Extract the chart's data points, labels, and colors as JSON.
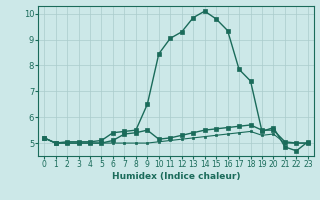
{
  "xlabel": "Humidex (Indice chaleur)",
  "bg_color": "#cce8e8",
  "grid_color": "#aacccc",
  "line_color": "#1a6b5a",
  "spine_color": "#1a6b5a",
  "xlim": [
    -0.5,
    23.5
  ],
  "ylim": [
    4.5,
    10.3
  ],
  "xticks": [
    0,
    1,
    2,
    3,
    4,
    5,
    6,
    7,
    8,
    9,
    10,
    11,
    12,
    13,
    14,
    15,
    16,
    17,
    18,
    19,
    20,
    21,
    22,
    23
  ],
  "yticks": [
    5,
    6,
    7,
    8,
    9,
    10
  ],
  "curve1_x": [
    0,
    1,
    2,
    3,
    4,
    5,
    6,
    7,
    8,
    9,
    10,
    11,
    12,
    13,
    14,
    15,
    16,
    17,
    18,
    19,
    20,
    21,
    22,
    23
  ],
  "curve1_y": [
    5.2,
    5.0,
    5.05,
    5.05,
    5.05,
    5.1,
    5.4,
    5.45,
    5.5,
    6.5,
    8.45,
    9.05,
    9.3,
    9.85,
    10.1,
    9.8,
    9.35,
    7.85,
    7.4,
    5.45,
    5.6,
    4.85,
    4.7,
    5.05
  ],
  "curve2_x": [
    0,
    1,
    2,
    3,
    4,
    5,
    6,
    7,
    8,
    9,
    10,
    11,
    12,
    13,
    14,
    15,
    16,
    17,
    18,
    19,
    20,
    21,
    22,
    23
  ],
  "curve2_y": [
    5.2,
    5.0,
    5.0,
    5.0,
    5.0,
    5.0,
    5.1,
    5.35,
    5.4,
    5.5,
    5.15,
    5.2,
    5.3,
    5.4,
    5.5,
    5.55,
    5.6,
    5.65,
    5.7,
    5.5,
    5.5,
    5.05,
    5.0,
    5.0
  ],
  "curve3_x": [
    0,
    1,
    2,
    3,
    4,
    5,
    6,
    7,
    8,
    9,
    10,
    11,
    12,
    13,
    14,
    15,
    16,
    17,
    18,
    19,
    20,
    21,
    22,
    23
  ],
  "curve3_y": [
    5.2,
    5.0,
    5.0,
    5.0,
    5.0,
    5.0,
    5.0,
    5.0,
    5.0,
    5.0,
    5.05,
    5.1,
    5.15,
    5.2,
    5.25,
    5.3,
    5.35,
    5.4,
    5.45,
    5.3,
    5.35,
    5.0,
    5.0,
    5.0
  ],
  "tick_fontsize_x": 5.5,
  "tick_fontsize_y": 6.0,
  "xlabel_fontsize": 6.5,
  "linewidth1": 1.0,
  "linewidth2": 1.0,
  "linewidth3": 0.8,
  "markersize1": 2.5,
  "markersize2": 2.5,
  "markersize3": 2.0
}
